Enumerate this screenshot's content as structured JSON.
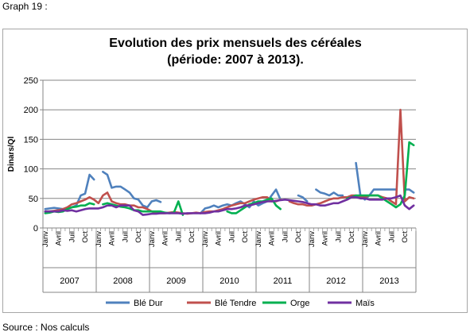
{
  "captions": {
    "top": "Graph 19 :",
    "bottom": "Source : Nos calculs"
  },
  "chart_data": {
    "type": "line",
    "title": "Evolution des prix mensuels des céréales",
    "subtitle": "(période: 2007 à 2013).",
    "ylabel": "Dinars/Ql",
    "xlabel": "",
    "ylim": [
      0,
      250
    ],
    "yticks": [
      0,
      50,
      100,
      150,
      200,
      250
    ],
    "grid": "horizontal",
    "legend_position": "bottom",
    "month_labels": [
      "Janv",
      "Avril",
      "Juil",
      "Oct"
    ],
    "month_indices": [
      0,
      3,
      6,
      9
    ],
    "years": [
      "2007",
      "2008",
      "2009",
      "2010",
      "2011",
      "2012",
      "2013"
    ],
    "series": [
      {
        "name": "Blé Dur",
        "color": "#4f81bd",
        "values": [
          32,
          33,
          34,
          33,
          32,
          33,
          35,
          38,
          55,
          58,
          90,
          82,
          null,
          95,
          90,
          68,
          70,
          70,
          65,
          60,
          50,
          48,
          38,
          35,
          45,
          47,
          44,
          null,
          25,
          null,
          null,
          null,
          25,
          null,
          null,
          25,
          33,
          35,
          38,
          35,
          38,
          40,
          38,
          42,
          45,
          40,
          35,
          45,
          38,
          42,
          45,
          55,
          65,
          48,
          null,
          null,
          null,
          55,
          52,
          45,
          null,
          65,
          60,
          58,
          55,
          60,
          55,
          55,
          null,
          null,
          110,
          55,
          48,
          55,
          65,
          65,
          65,
          65,
          65,
          65,
          null,
          65,
          65,
          60
        ]
      },
      {
        "name": "Blé Tendre",
        "color": "#c0504d",
        "values": [
          28,
          28,
          29,
          30,
          32,
          35,
          40,
          42,
          45,
          48,
          52,
          48,
          42,
          55,
          60,
          45,
          42,
          40,
          40,
          38,
          38,
          35,
          35,
          32,
          28,
          26,
          25,
          25,
          26,
          27,
          26,
          25,
          24,
          25,
          26,
          25,
          27,
          28,
          28,
          30,
          32,
          35,
          38,
          40,
          42,
          42,
          45,
          48,
          50,
          52,
          52,
          45,
          45,
          48,
          null,
          45,
          42,
          40,
          40,
          38,
          38,
          40,
          42,
          45,
          48,
          50,
          50,
          52,
          52,
          55,
          55,
          52,
          52,
          55,
          55,
          55,
          52,
          50,
          45,
          40,
          200,
          45,
          52,
          50
        ]
      },
      {
        "name": "Orge",
        "color": "#00b050",
        "values": [
          25,
          26,
          28,
          27,
          28,
          32,
          35,
          36,
          38,
          38,
          42,
          40,
          null,
          40,
          42,
          40,
          38,
          36,
          35,
          33,
          30,
          30,
          28,
          28,
          28,
          28,
          28,
          26,
          25,
          26,
          45,
          22,
          null,
          null,
          null,
          null,
          null,
          null,
          null,
          null,
          null,
          28,
          25,
          25,
          30,
          35,
          40,
          42,
          45,
          45,
          48,
          50,
          38,
          32,
          null,
          null,
          null,
          null,
          null,
          null,
          null,
          null,
          null,
          null,
          null,
          null,
          null,
          null,
          50,
          52,
          55,
          55,
          55,
          55,
          55,
          55,
          50,
          45,
          40,
          35,
          40,
          55,
          145,
          140
        ]
      },
      {
        "name": "Maïs",
        "color": "#7030a0",
        "values": [
          28,
          28,
          28,
          28,
          30,
          29,
          30,
          28,
          30,
          32,
          33,
          33,
          33,
          35,
          38,
          38,
          35,
          38,
          38,
          38,
          30,
          28,
          22,
          23,
          24,
          24,
          25,
          25,
          25,
          25,
          25,
          24,
          25,
          25,
          25,
          25,
          25,
          26,
          28,
          28,
          30,
          32,
          32,
          33,
          35,
          38,
          38,
          40,
          42,
          44,
          45,
          45,
          46,
          47,
          48,
          47,
          46,
          45,
          44,
          42,
          40,
          40,
          38,
          38,
          40,
          42,
          42,
          45,
          48,
          52,
          52,
          50,
          50,
          48,
          48,
          48,
          48,
          50,
          50,
          52,
          55,
          38,
          32,
          38
        ]
      }
    ]
  }
}
